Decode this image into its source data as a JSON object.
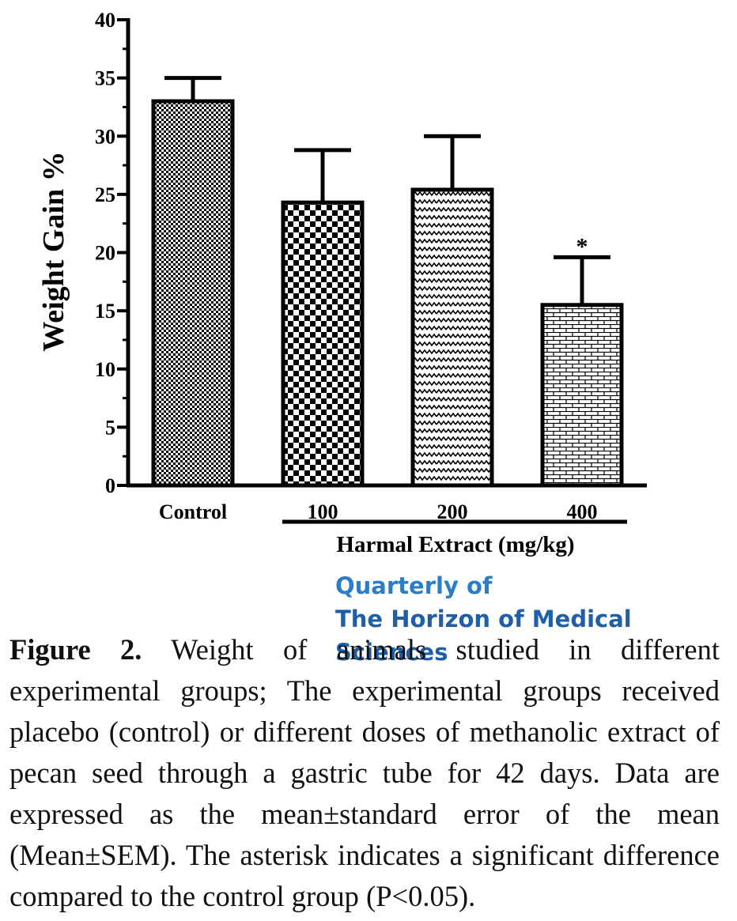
{
  "chart_data": {
    "type": "bar",
    "categories": [
      "Control",
      "100",
      "200",
      "400"
    ],
    "values": [
      33,
      24.3,
      25.4,
      15.5
    ],
    "error_upper": [
      35,
      28.8,
      30,
      19.6
    ],
    "significance": [
      "",
      "",
      "",
      "*"
    ],
    "patterns": [
      "fine-check",
      "check",
      "zigzag",
      "brick"
    ],
    "xlabel": "Harmal Extract (mg/kg)",
    "ylabel": "Weight Gain %",
    "ylim": [
      0,
      40
    ],
    "yticks": [
      0,
      5,
      10,
      15,
      20,
      25,
      30,
      35,
      40
    ],
    "bracket_categories": [
      "100",
      "200",
      "400"
    ],
    "grid": false
  },
  "watermark": {
    "line1": "Quarterly of",
    "line2": "The Horizon of Medical Sciences"
  },
  "caption": {
    "label": "Figure 2.",
    "text": "Weight of animals studied in different experimental groups; The experimental groups received placebo (control) or different doses of methanolic extract of pecan seed through a gastric tube for 42 days. Data are expressed as the mean±standard error of the mean (Mean±SEM). The asterisk indicates a significant difference compared to the control group (P<0.05)."
  }
}
